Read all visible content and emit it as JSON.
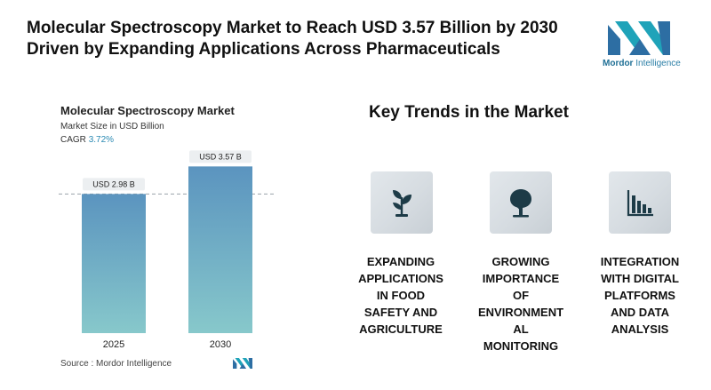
{
  "headline": {
    "line1": "Molecular Spectroscopy Market to Reach USD 3.57 Billion by 2030",
    "line2": "Driven by Expanding Applications Across Pharmaceuticals"
  },
  "logo": {
    "text_bold": "Mordor",
    "text_rest": " Intelligence"
  },
  "chart_data": {
    "type": "bar",
    "title": "Molecular Spectroscopy Market",
    "subtitle": "Market Size in USD Billion",
    "cagr_label": "CAGR",
    "cagr_value": "3.72%",
    "categories": [
      "2025",
      "2030"
    ],
    "values": [
      2.98,
      3.57
    ],
    "data_labels": [
      "USD 2.98 B",
      "USD 3.57 B"
    ],
    "ylim": [
      0,
      3.9
    ],
    "bar_color_top": "#5b94bf",
    "bar_color_bottom": "#87c8cb",
    "reference_line": "dashed at 2025 value"
  },
  "source": "Source :  Mordor Intelligence",
  "trends": {
    "title": "Key Trends in the Market",
    "items": [
      {
        "icon": "plant-sprout-icon",
        "lines": [
          "EXPANDING",
          "APPLICATIONS",
          "IN FOOD",
          "SAFETY AND",
          "AGRICULTURE"
        ]
      },
      {
        "icon": "tree-icon",
        "lines": [
          "GROWING",
          "IMPORTANCE",
          "OF",
          "ENVIRONMENT",
          "AL",
          "MONITORING"
        ]
      },
      {
        "icon": "bar-chart-icon",
        "lines": [
          "INTEGRATION",
          "WITH DIGITAL",
          "PLATFORMS",
          "AND DATA",
          "ANALYSIS"
        ]
      }
    ]
  },
  "colors": {
    "accent": "#2b8ab3",
    "icon_dark": "#1d3b47",
    "logo_teal": "#1fa3b9",
    "logo_blue": "#2d6ea3"
  }
}
